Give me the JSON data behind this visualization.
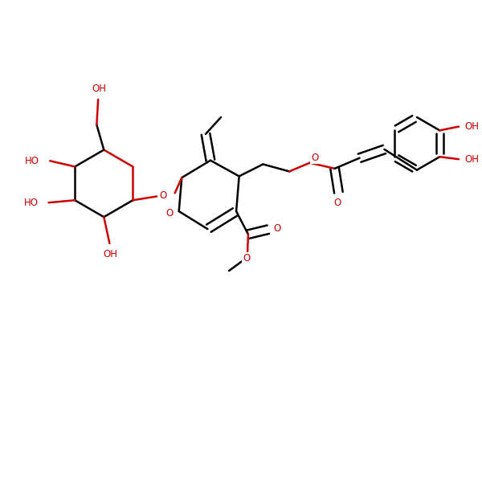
{
  "bg": "#ffffff",
  "bc": "#000000",
  "hc": "#cc0000",
  "lw": 1.8,
  "fs": 8.5,
  "figsize": [
    6.0,
    6.0
  ],
  "dpi": 100,
  "xlim": [
    0,
    10
  ],
  "ylim": [
    0,
    10
  ]
}
